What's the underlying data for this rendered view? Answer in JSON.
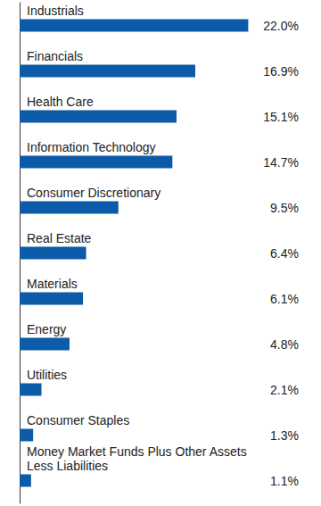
{
  "chart_data": {
    "type": "bar",
    "orientation": "horizontal",
    "categories": [
      "Industrials",
      "Financials",
      "Health Care",
      "Information Technology",
      "Consumer Discretionary",
      "Real Estate",
      "Materials",
      "Energy",
      "Utilities",
      "Consumer Staples",
      "Money Market Funds Plus Other Assets Less Liabilities"
    ],
    "values": [
      22.0,
      16.9,
      15.1,
      14.7,
      9.5,
      6.4,
      6.1,
      4.8,
      2.1,
      1.3,
      1.1
    ],
    "value_labels": [
      "22.0%",
      "16.9%",
      "15.1%",
      "14.7%",
      "9.5%",
      "6.4%",
      "6.1%",
      "4.8%",
      "2.1%",
      "1.3%",
      "1.1%"
    ],
    "data_labels": true,
    "color": "#0b5ba8",
    "xlim": [
      0,
      29
    ],
    "tick_labels": "y"
  }
}
